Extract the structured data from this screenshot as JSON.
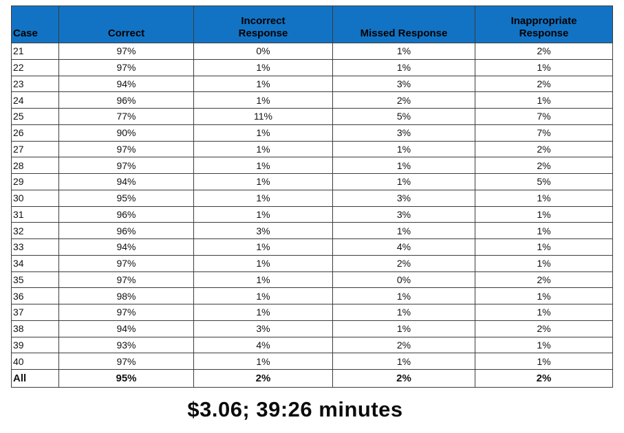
{
  "chart_data": {
    "type": "table",
    "columns": [
      "Case",
      "Correct",
      "Incorrect\nResponse",
      "Missed Response",
      "Inappropriate\nResponse"
    ],
    "rows": [
      [
        "21",
        "97%",
        "0%",
        "1%",
        "2%"
      ],
      [
        "22",
        "97%",
        "1%",
        "1%",
        "1%"
      ],
      [
        "23",
        "94%",
        "1%",
        "3%",
        "2%"
      ],
      [
        "24",
        "96%",
        "1%",
        "2%",
        "1%"
      ],
      [
        "25",
        "77%",
        "11%",
        "5%",
        "7%"
      ],
      [
        "26",
        "90%",
        "1%",
        "3%",
        "7%"
      ],
      [
        "27",
        "97%",
        "1%",
        "1%",
        "2%"
      ],
      [
        "28",
        "97%",
        "1%",
        "1%",
        "2%"
      ],
      [
        "29",
        "94%",
        "1%",
        "1%",
        "5%"
      ],
      [
        "30",
        "95%",
        "1%",
        "3%",
        "1%"
      ],
      [
        "31",
        "96%",
        "1%",
        "3%",
        "1%"
      ],
      [
        "32",
        "96%",
        "3%",
        "1%",
        "1%"
      ],
      [
        "33",
        "94%",
        "1%",
        "4%",
        "1%"
      ],
      [
        "34",
        "97%",
        "1%",
        "2%",
        "1%"
      ],
      [
        "35",
        "97%",
        "1%",
        "0%",
        "2%"
      ],
      [
        "36",
        "98%",
        "1%",
        "1%",
        "1%"
      ],
      [
        "37",
        "97%",
        "1%",
        "1%",
        "1%"
      ],
      [
        "38",
        "94%",
        "3%",
        "1%",
        "2%"
      ],
      [
        "39",
        "93%",
        "4%",
        "2%",
        "1%"
      ],
      [
        "40",
        "97%",
        "1%",
        "1%",
        "1%"
      ]
    ],
    "total_row": [
      "All",
      "95%",
      "2%",
      "2%",
      "2%"
    ]
  },
  "caption": "$3.06; 39:26 minutes",
  "colors": {
    "header_bg": "#1273C4",
    "header_text": "#000000",
    "border": "#3b3b3b"
  }
}
